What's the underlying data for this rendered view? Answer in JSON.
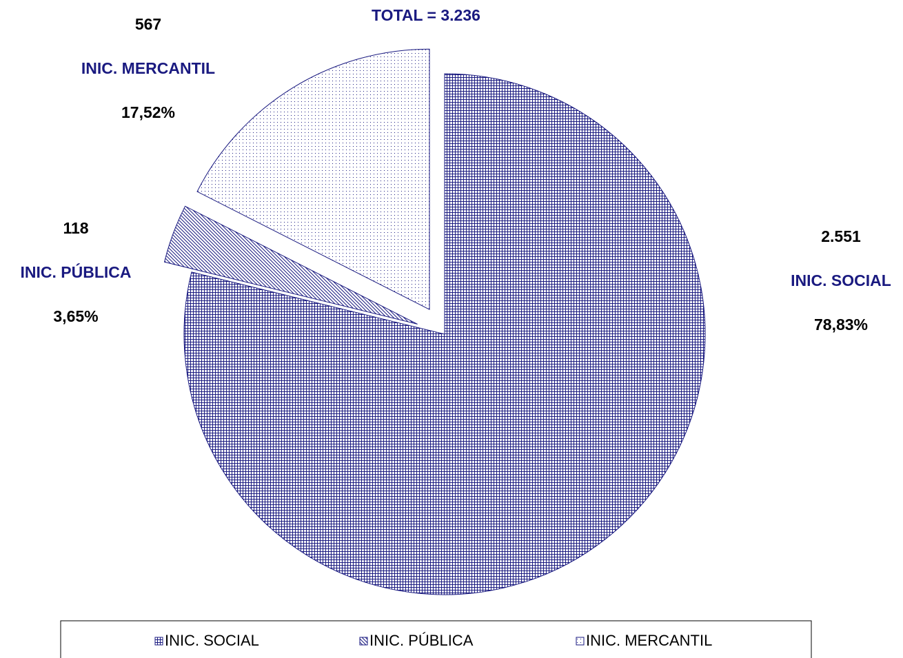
{
  "chart_data": {
    "type": "pie",
    "title": "TOTAL = 3.236",
    "categories": [
      "INIC. SOCIAL",
      "INIC. PÚBLICA",
      "INIC. MERCANTIL"
    ],
    "values": [
      2551,
      118,
      567
    ],
    "value_labels": [
      "2.551",
      "118",
      "567"
    ],
    "percentages": [
      78.83,
      3.65,
      17.52
    ],
    "percentage_labels": [
      "78,83%",
      "3,65%",
      "17,52%"
    ],
    "explode": [
      false,
      true,
      true
    ],
    "patterns": [
      "grid",
      "diagonal",
      "dots"
    ],
    "color": "#1a1a80",
    "legend": "bottom"
  }
}
